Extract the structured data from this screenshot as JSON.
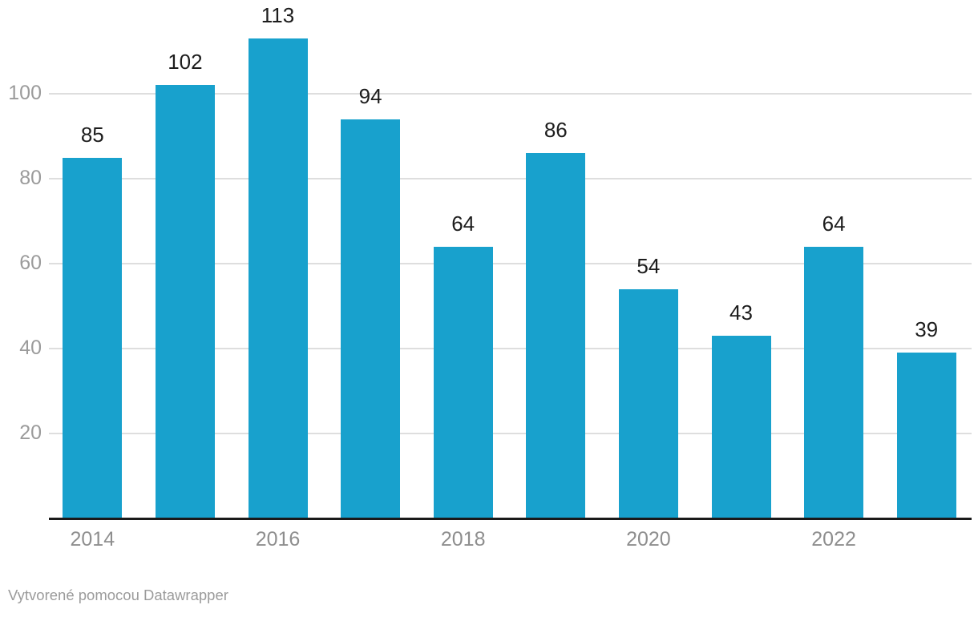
{
  "chart_data": {
    "type": "bar",
    "categories": [
      "2014",
      "2015",
      "2016",
      "2017",
      "2018",
      "2019",
      "2020",
      "2021",
      "2022",
      "2023"
    ],
    "values": [
      85,
      102,
      113,
      94,
      64,
      86,
      54,
      43,
      64,
      39
    ],
    "value_labels": [
      "85",
      "102",
      "113",
      "94",
      "64",
      "86",
      "54",
      "43",
      "64",
      "39"
    ],
    "title": "",
    "xlabel": "",
    "ylabel": "",
    "ylim": [
      0,
      122
    ],
    "y_ticks": [
      20,
      40,
      60,
      80,
      100
    ],
    "y_tick_labels": [
      "20",
      "40",
      "60",
      "80",
      "100"
    ],
    "x_tick_labels": [
      "2014",
      "2016",
      "2018",
      "2020",
      "2022"
    ],
    "x_tick_indices": [
      0,
      2,
      4,
      6,
      8
    ],
    "grid": "horizontal",
    "legend_position": "none"
  },
  "colors": {
    "bar": "#18a1cd",
    "value_label": "#1d1d1d",
    "axis_label": "#9b9b9b",
    "gridline": "#dedede",
    "baseline": "#1a1a1a",
    "background": "#ffffff"
  },
  "footer": {
    "attribution": "Vytvorené pomocou Datawrapper"
  }
}
